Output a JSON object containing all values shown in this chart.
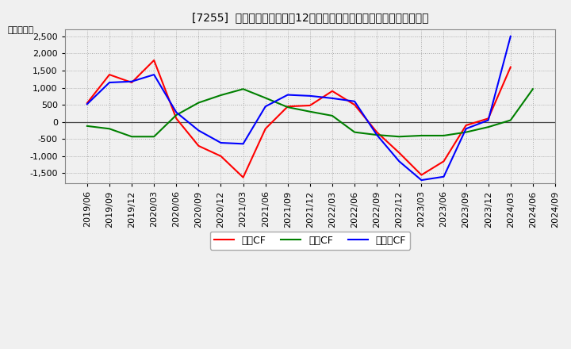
{
  "title": "[7255]  キャッシュフローの12か月移動合計の対前年同期増減額の推移",
  "ylabel": "（百万円）",
  "background_color": "#f0f0f0",
  "plot_bg_color": "#f0f0f0",
  "grid_color": "#aaaaaa",
  "x_labels": [
    "2019/06",
    "2019/09",
    "2019/12",
    "2020/03",
    "2020/06",
    "2020/09",
    "2020/12",
    "2021/03",
    "2021/06",
    "2021/09",
    "2021/12",
    "2022/03",
    "2022/06",
    "2022/09",
    "2022/12",
    "2023/03",
    "2023/06",
    "2023/09",
    "2023/12",
    "2024/03",
    "2024/06",
    "2024/09"
  ],
  "operating_cf": [
    550,
    1380,
    1150,
    1800,
    100,
    -700,
    -1000,
    -1620,
    -200,
    450,
    480,
    900,
    500,
    -300,
    -900,
    -1550,
    -1150,
    -100,
    100,
    1600,
    null,
    null
  ],
  "investing_cf": [
    -120,
    -200,
    -430,
    -430,
    200,
    560,
    780,
    960,
    700,
    430,
    300,
    180,
    -300,
    -380,
    -430,
    -400,
    -400,
    -300,
    -150,
    50,
    960,
    null
  ],
  "free_cf": [
    520,
    1150,
    1180,
    1380,
    280,
    -250,
    -610,
    -640,
    450,
    790,
    760,
    690,
    600,
    -380,
    -1150,
    -1700,
    -1600,
    -200,
    50,
    2500,
    null,
    null
  ],
  "ylim": [
    -1800,
    2700
  ],
  "yticks": [
    -1500,
    -1000,
    -500,
    0,
    500,
    1000,
    1500,
    2000,
    2500
  ],
  "line_colors": {
    "operating": "#ff0000",
    "investing": "#008000",
    "free": "#0000ff"
  },
  "legend_labels": {
    "operating": "営業CF",
    "investing": "投資CF",
    "free": "フリーCF"
  },
  "title_fontsize": 12,
  "axis_fontsize": 8,
  "legend_fontsize": 9
}
